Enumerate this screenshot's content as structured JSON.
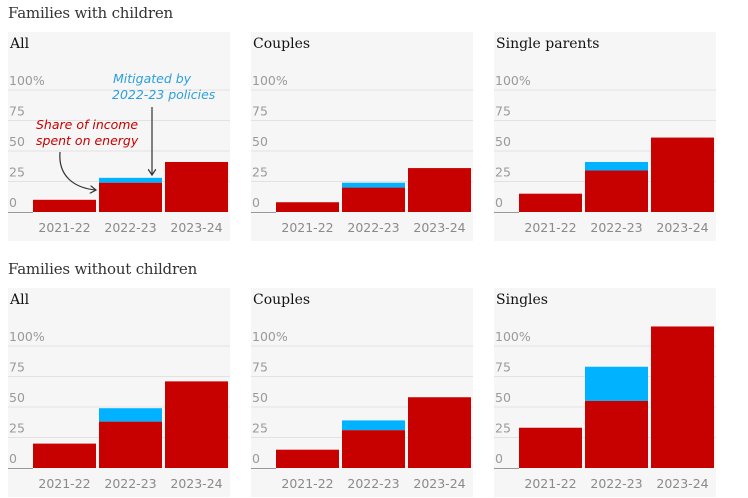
{
  "colors": {
    "energy": "#c70000",
    "mitigated": "#00b2ff",
    "gridline": "#e2e2e2",
    "axis": "#999999",
    "panel_bg": "#f6f6f6"
  },
  "sections": [
    {
      "title": "Families with children"
    },
    {
      "title": "Families without children"
    }
  ],
  "annotations": {
    "energy_label_line1": "Share of income",
    "energy_label_line2": "spent on energy",
    "mitigated_label_line1": "Mitigated by",
    "mitigated_label_line2": "2022-23 policies"
  },
  "chart_data": [
    {
      "type": "bar",
      "group": "Families with children",
      "title": "All",
      "categories": [
        "2021-22",
        "2022-23",
        "2023-24"
      ],
      "yticks": [
        "0",
        "25",
        "50",
        "75",
        "100%"
      ],
      "ylim": [
        0,
        100
      ],
      "series": [
        {
          "name": "Share of income spent on energy",
          "values": [
            10,
            24,
            41
          ]
        },
        {
          "name": "Mitigated by 2022-23 policies",
          "values": [
            0,
            4,
            0
          ]
        }
      ]
    },
    {
      "type": "bar",
      "group": "Families with children",
      "title": "Couples",
      "categories": [
        "2021-22",
        "2022-23",
        "2023-24"
      ],
      "yticks": [
        "0",
        "25",
        "50",
        "75",
        "100%"
      ],
      "ylim": [
        0,
        100
      ],
      "series": [
        {
          "name": "Share of income spent on energy",
          "values": [
            8,
            20,
            36
          ]
        },
        {
          "name": "Mitigated by 2022-23 policies",
          "values": [
            0,
            4,
            0
          ]
        }
      ]
    },
    {
      "type": "bar",
      "group": "Families with children",
      "title": "Single parents",
      "categories": [
        "2021-22",
        "2022-23",
        "2023-24"
      ],
      "yticks": [
        "0",
        "25",
        "50",
        "75",
        "100%"
      ],
      "ylim": [
        0,
        100
      ],
      "series": [
        {
          "name": "Share of income spent on energy",
          "values": [
            15,
            34,
            61
          ]
        },
        {
          "name": "Mitigated by 2022-23 policies",
          "values": [
            0,
            7,
            0
          ]
        }
      ]
    },
    {
      "type": "bar",
      "group": "Families without children",
      "title": "All",
      "categories": [
        "2021-22",
        "2022-23",
        "2023-24"
      ],
      "yticks": [
        "0",
        "25",
        "50",
        "75",
        "100%"
      ],
      "ylim": [
        0,
        100
      ],
      "series": [
        {
          "name": "Share of income spent on energy",
          "values": [
            20,
            38,
            71
          ]
        },
        {
          "name": "Mitigated by 2022-23 policies",
          "values": [
            0,
            11,
            0
          ]
        }
      ]
    },
    {
      "type": "bar",
      "group": "Families without children",
      "title": "Couples",
      "categories": [
        "2021-22",
        "2022-23",
        "2023-24"
      ],
      "yticks": [
        "0",
        "25",
        "50",
        "75",
        "100%"
      ],
      "ylim": [
        0,
        100
      ],
      "series": [
        {
          "name": "Share of income spent on energy",
          "values": [
            15,
            31,
            58
          ]
        },
        {
          "name": "Mitigated by 2022-23 policies",
          "values": [
            0,
            8,
            0
          ]
        }
      ]
    },
    {
      "type": "bar",
      "group": "Families without children",
      "title": "Singles",
      "categories": [
        "2021-22",
        "2022-23",
        "2023-24"
      ],
      "yticks": [
        "0",
        "25",
        "50",
        "75",
        "100%"
      ],
      "ylim": [
        0,
        100
      ],
      "series": [
        {
          "name": "Share of income spent on energy",
          "values": [
            33,
            55,
            116
          ]
        },
        {
          "name": "Mitigated by 2022-23 policies",
          "values": [
            0,
            28,
            0
          ]
        }
      ]
    }
  ]
}
